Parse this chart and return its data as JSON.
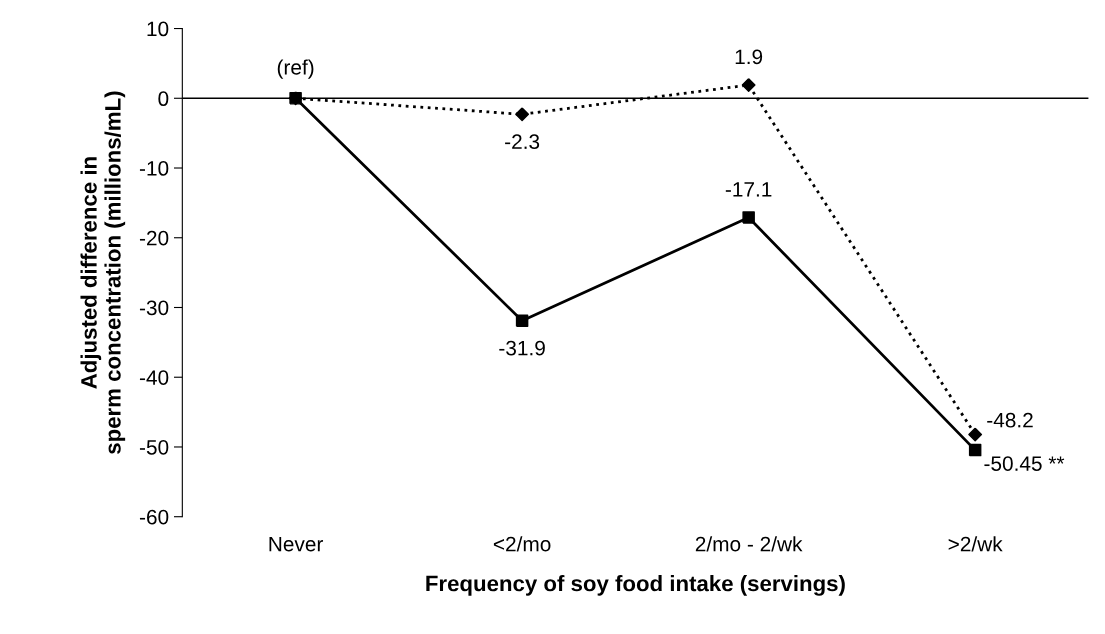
{
  "chart_data": {
    "type": "line",
    "xlabel": "Frequency of soy food intake (servings)",
    "ylabel": "Adjusted difference in\nsperm concentration (millions/mL)",
    "categories": [
      "Never",
      "<2/mo",
      "2/mo - 2/wk",
      ">2/wk"
    ],
    "series": [
      {
        "color": "#000000",
        "values": [
          0,
          -31.9,
          -17.1,
          -50.45
        ],
        "marker": "square",
        "line_style": "solid",
        "value_labels": [
          "(ref)",
          "-31.9",
          "-17.1",
          "-50.45 **"
        ]
      },
      {
        "color": "#000000",
        "values": [
          0,
          -2.3,
          1.9,
          -48.2
        ],
        "marker": "diamond",
        "line_style": "dotted",
        "value_labels": [
          null,
          "-2.3",
          "1.9",
          "-48.2"
        ]
      }
    ],
    "ylim": [
      -60,
      10
    ],
    "yticks": [
      -60,
      -50,
      -40,
      -30,
      -20,
      -10,
      0,
      10
    ],
    "ref_lines": [
      {
        "axis": "y",
        "value": 0,
        "color": "#000000",
        "line_style": "solid"
      }
    ],
    "grid": false,
    "legend": false
  }
}
